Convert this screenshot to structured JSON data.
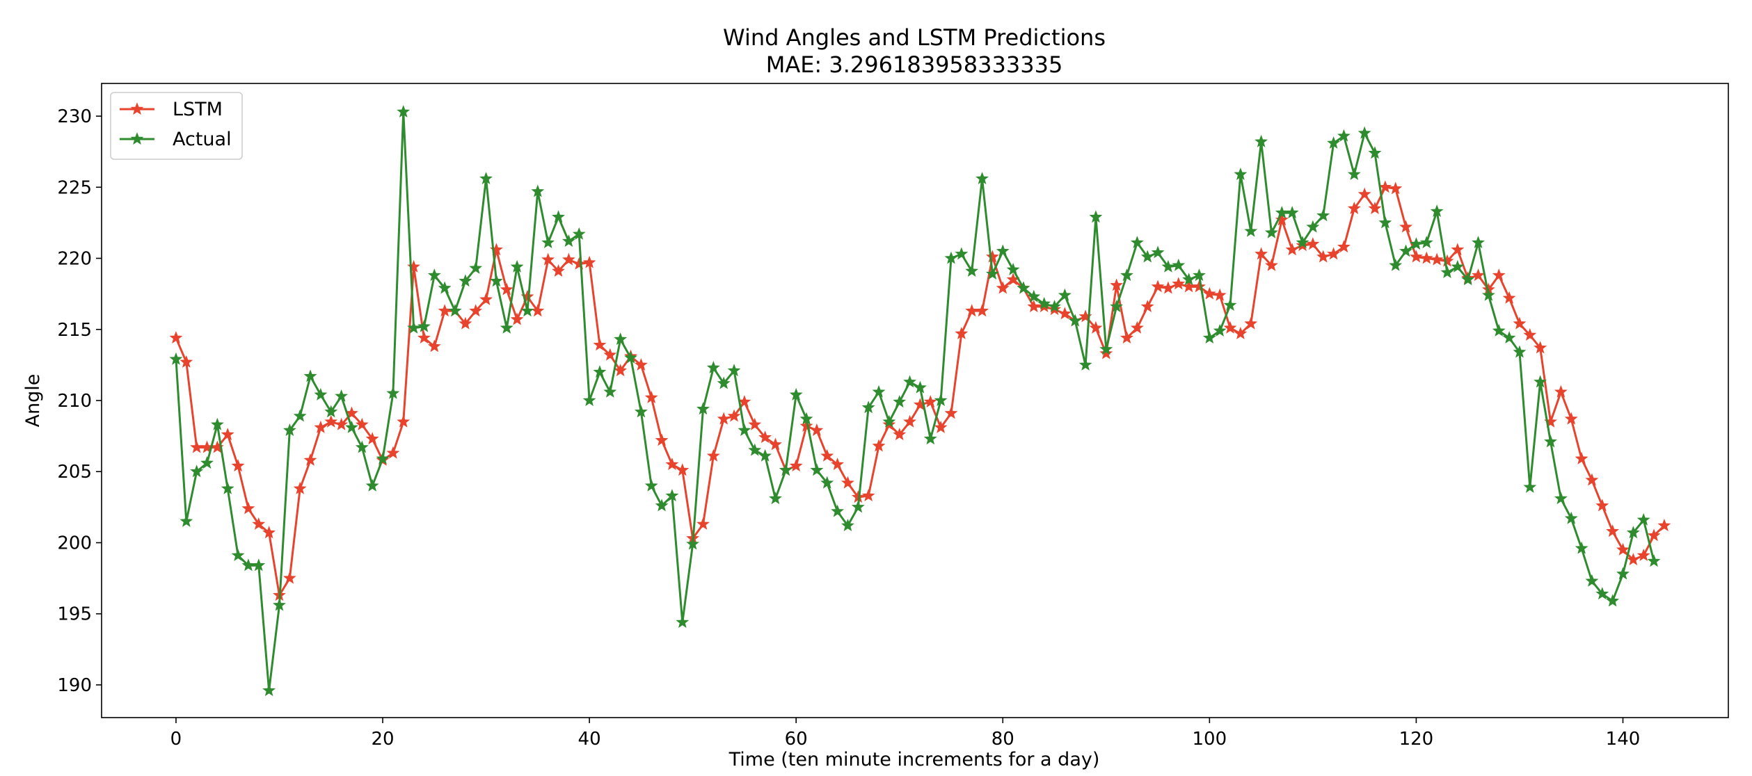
{
  "chart_data": {
    "type": "line",
    "title": "Wind Angles and LSTM Predictions",
    "subtitle": "MAE:  3.296183958333335",
    "xlabel": "Time (ten minute increments for a day)",
    "ylabel": "Angle",
    "xlim": [
      -7.2,
      150.2
    ],
    "ylim": [
      187.7,
      232.3
    ],
    "xticks": [
      0,
      20,
      40,
      60,
      80,
      100,
      120,
      140
    ],
    "yticks": [
      190,
      195,
      200,
      205,
      210,
      215,
      220,
      225,
      230
    ],
    "grid": false,
    "legend": "top-left",
    "marker": "star",
    "series": [
      {
        "name": "LSTM",
        "color": "#e8432d",
        "values": [
          214.4,
          212.7,
          206.7,
          206.7,
          206.7,
          207.6,
          205.4,
          202.4,
          201.3,
          200.7,
          196.3,
          197.5,
          203.8,
          205.8,
          208.1,
          208.5,
          208.3,
          209.1,
          208.3,
          207.3,
          205.8,
          206.3,
          208.5,
          219.4,
          214.4,
          213.8,
          216.3,
          216.3,
          215.4,
          216.3,
          217.1,
          220.6,
          217.8,
          215.7,
          217.3,
          216.3,
          219.9,
          219.1,
          219.9,
          219.6,
          219.7,
          213.9,
          213.2,
          212.1,
          213.1,
          212.5,
          210.2,
          207.2,
          205.5,
          205.1,
          200.3,
          201.3,
          206.1,
          208.7,
          208.9,
          209.9,
          208.3,
          207.4,
          206.9,
          205.1,
          205.4,
          208.2,
          207.9,
          206.1,
          205.5,
          204.2,
          203.2,
          203.3,
          206.8,
          208.3,
          207.6,
          208.5,
          209.7,
          209.9,
          208.1,
          209.1,
          214.7,
          216.3,
          216.3,
          220.1,
          217.9,
          218.5,
          217.9,
          216.6,
          216.6,
          216.4,
          216.1,
          215.6,
          215.9,
          215.1,
          213.3,
          218.1,
          214.4,
          215.1,
          216.6,
          218.0,
          217.9,
          218.2,
          218.0,
          218.0,
          217.5,
          217.4,
          215.1,
          214.7,
          215.4,
          220.3,
          219.5,
          222.7,
          220.6,
          220.9,
          221.0,
          220.1,
          220.3,
          220.8,
          223.5,
          224.5,
          223.5,
          225.0,
          224.9,
          222.2,
          220.1,
          220.0,
          219.9,
          219.8,
          220.6,
          218.6,
          218.8,
          217.8,
          218.8,
          217.2,
          215.4,
          214.6,
          213.7,
          208.5,
          210.6,
          208.7,
          205.9,
          204.4,
          202.6,
          200.8,
          199.5,
          198.8,
          199.1,
          200.5,
          201.2
        ]
      },
      {
        "name": "Actual",
        "color": "#2e8b2e",
        "values": [
          212.9,
          201.5,
          205.0,
          205.6,
          208.3,
          203.8,
          199.1,
          198.4,
          198.4,
          189.6,
          195.6,
          207.9,
          208.9,
          211.7,
          210.4,
          209.2,
          210.3,
          208.1,
          206.7,
          204.0,
          205.9,
          210.5,
          230.3,
          215.1,
          215.2,
          218.8,
          217.9,
          216.3,
          218.4,
          219.3,
          225.6,
          218.4,
          215.1,
          219.4,
          216.3,
          224.7,
          221.1,
          222.9,
          221.2,
          221.7,
          210.0,
          212.0,
          210.6,
          214.3,
          213.0,
          209.2,
          204.0,
          202.6,
          203.3,
          194.4,
          199.9,
          209.4,
          212.3,
          211.2,
          212.1,
          207.9,
          206.5,
          206.1,
          203.1,
          205.1,
          210.4,
          208.7,
          205.1,
          204.2,
          202.2,
          201.2,
          202.5,
          209.5,
          210.6,
          208.5,
          209.9,
          211.3,
          210.9,
          207.3,
          210.0,
          220.0,
          220.3,
          219.1,
          225.6,
          218.9,
          220.5,
          219.2,
          217.9,
          217.3,
          216.8,
          216.6,
          217.4,
          215.6,
          212.5,
          222.9,
          213.6,
          216.6,
          218.8,
          221.1,
          220.1,
          220.4,
          219.4,
          219.5,
          218.5,
          218.8,
          214.4,
          214.9,
          216.7,
          225.9,
          221.9,
          228.2,
          221.8,
          223.2,
          223.2,
          221.1,
          222.2,
          223.0,
          228.1,
          228.6,
          225.9,
          228.8,
          227.4,
          222.5,
          219.5,
          220.5,
          221.0,
          221.1,
          223.3,
          219.0,
          219.4,
          218.5,
          221.1,
          217.4,
          214.9,
          214.4,
          213.4,
          203.9,
          211.3,
          207.1,
          203.1,
          201.7,
          199.6,
          197.3,
          196.4,
          195.9,
          197.8,
          200.7,
          201.6,
          198.7
        ]
      }
    ]
  }
}
